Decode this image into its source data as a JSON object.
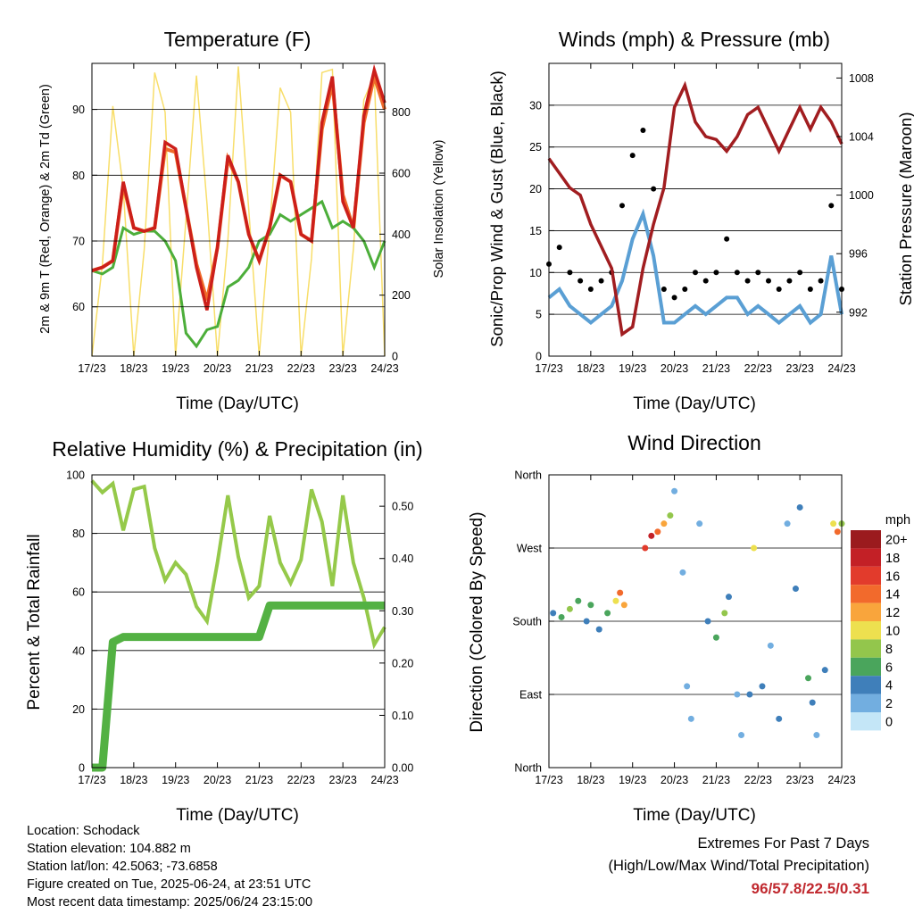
{
  "colors": {
    "temp_2m": "#cc1f1a",
    "temp_9m": "#f06a2a",
    "dewpoint": "#4cae3a",
    "solar": "#f8de6a",
    "wind": "#5a9fd4",
    "gust": "#000000",
    "pressure": "#a11d20",
    "rh": "#95c94a",
    "precip": "#53b143",
    "extremes": "#c0282e"
  },
  "time_ticks": [
    "17/23",
    "18/23",
    "19/23",
    "20/23",
    "21/23",
    "22/23",
    "23/23",
    "24/23"
  ],
  "panels": {
    "temperature": {
      "title": "Temperature (F)",
      "ylabel_left": "2m & 9m T (Red, Orange) & 2m Td (Green)",
      "ylabel_right": "Solar Insolation (Yellow)",
      "xlabel": "Time (Day/UTC)",
      "left_ticks": [
        "60",
        "70",
        "80",
        "90"
      ],
      "right_ticks": [
        "0",
        "200",
        "400",
        "600",
        "800"
      ]
    },
    "winds": {
      "title": "Winds (mph) & Pressure (mb)",
      "ylabel_left": "Sonic/Prop Wind & Gust (Blue, Black)",
      "ylabel_right": "Station Pressure (Maroon)",
      "xlabel": "Time (Day/UTC)",
      "left_ticks": [
        "0",
        "5",
        "10",
        "15",
        "20",
        "25",
        "30"
      ],
      "right_ticks": [
        "992",
        "996",
        "1000",
        "1004",
        "1008"
      ]
    },
    "humidity": {
      "title": "Relative Humidity (%) & Precipitation (in)",
      "ylabel_left": "Percent & Total Rainfall",
      "xlabel": "Time (Day/UTC)",
      "left_ticks": [
        "0",
        "20",
        "40",
        "60",
        "80",
        "100"
      ],
      "right_ticks": [
        "0.00",
        "0.10",
        "0.20",
        "0.30",
        "0.40",
        "0.50"
      ]
    },
    "direction": {
      "title": "Wind Direction",
      "ylabel_left": "Direction (Colored By Speed)",
      "xlabel": "Time (Day/UTC)",
      "left_ticks": [
        "North",
        "East",
        "South",
        "West",
        "North"
      ],
      "legend_title": "mph",
      "legend_labels": [
        "20+",
        "18",
        "16",
        "14",
        "12",
        "10",
        "8",
        "6",
        "4",
        "2",
        "0"
      ],
      "legend_colors": [
        "#9b1b1e",
        "#c32026",
        "#e23b2c",
        "#f26a2c",
        "#f9a53c",
        "#ede04f",
        "#93c64c",
        "#4aa55c",
        "#3f7fba",
        "#72aee0",
        "#c4e6f7"
      ]
    }
  },
  "station": {
    "location": "Location: Schodack",
    "elevation": "Station elevation: 104.882 m",
    "latlon": "Station lat/lon: 42.5063; -73.6858",
    "created": "Figure created on Tue, 2025-06-24, at 23:51 UTC",
    "recent": "Most recent data timestamp: 2025/06/24 23:15:00"
  },
  "extremes": {
    "line1": "Extremes For Past 7 Days",
    "line2": "(High/Low/Max Wind/Total Precipitation)",
    "values": "96/57.8/22.5/0.31"
  },
  "chart_data": [
    {
      "type": "line",
      "title": "Temperature (F)",
      "xlabel": "Time (Day/UTC)",
      "ylabel": "2m & 9m T (Red, Orange) & 2m Td (Green)",
      "y2label": "Solar Insolation (Yellow)",
      "x": [
        0,
        0.25,
        0.5,
        0.75,
        1.0,
        1.25,
        1.5,
        1.75,
        2.0,
        2.25,
        2.5,
        2.75,
        3.0,
        3.25,
        3.5,
        3.75,
        4.0,
        4.25,
        4.5,
        4.75,
        5.0,
        5.25,
        5.5,
        5.75,
        6.0,
        6.25,
        6.5,
        6.75,
        7.0
      ],
      "ylim": [
        52.5,
        97
      ],
      "y2lim": [
        0,
        960
      ],
      "series": [
        {
          "name": "2m T",
          "axis": "left",
          "values": [
            65.5,
            66,
            67,
            79,
            72,
            71.5,
            72,
            85,
            84,
            75,
            66,
            59.5,
            69,
            83,
            79,
            71,
            67,
            72,
            80,
            79,
            71,
            70,
            88,
            95,
            76,
            72,
            89,
            96,
            91
          ]
        },
        {
          "name": "9m T",
          "axis": "left",
          "values": [
            65.5,
            66,
            67,
            78.5,
            72,
            71.5,
            72,
            84,
            83.5,
            75,
            66.5,
            61,
            69,
            82.5,
            79,
            71,
            67,
            72,
            80,
            79,
            71,
            70,
            87,
            94,
            77,
            72,
            88,
            95,
            90
          ]
        },
        {
          "name": "2m Td",
          "axis": "left",
          "values": [
            65.5,
            65,
            66,
            72,
            71,
            71.5,
            71.5,
            70,
            67,
            56,
            54,
            56.5,
            57,
            63,
            64,
            66,
            70,
            71,
            74,
            73,
            74,
            75,
            76,
            72,
            73,
            72,
            70,
            66,
            70
          ]
        },
        {
          "name": "Solar Insolation",
          "axis": "right",
          "values": [
            0,
            300,
            820,
            550,
            0,
            350,
            930,
            800,
            0,
            450,
            920,
            500,
            0,
            380,
            950,
            480,
            0,
            420,
            880,
            800,
            0,
            320,
            930,
            940,
            0,
            350,
            840,
            920,
            0
          ]
        }
      ]
    },
    {
      "type": "line",
      "title": "Winds (mph) & Pressure (mb)",
      "xlabel": "Time (Day/UTC)",
      "ylabel": "Sonic/Prop Wind & Gust (Blue, Black)",
      "y2label": "Station Pressure (Maroon)",
      "x": [
        0,
        0.25,
        0.5,
        0.75,
        1.0,
        1.25,
        1.5,
        1.75,
        2.0,
        2.25,
        2.5,
        2.75,
        3.0,
        3.25,
        3.5,
        3.75,
        4.0,
        4.25,
        4.5,
        4.75,
        5.0,
        5.25,
        5.5,
        5.75,
        6.0,
        6.25,
        6.5,
        6.75,
        7.0
      ],
      "ylim": [
        0,
        35
      ],
      "y2lim": [
        989,
        1009
      ],
      "series": [
        {
          "name": "Wind",
          "axis": "left",
          "values": [
            7,
            8,
            6,
            5,
            4,
            5,
            6,
            9,
            14,
            17,
            12,
            4,
            4,
            5,
            6,
            5,
            6,
            7,
            7,
            5,
            6,
            5,
            4,
            5,
            6,
            4,
            5,
            12,
            5
          ]
        },
        {
          "name": "Gust",
          "axis": "left",
          "values": [
            11,
            13,
            10,
            9,
            8,
            9,
            10,
            18,
            24,
            27,
            20,
            8,
            7,
            8,
            10,
            9,
            10,
            14,
            10,
            9,
            10,
            9,
            8,
            9,
            10,
            8,
            9,
            18,
            8
          ]
        },
        {
          "name": "Station Pressure",
          "axis": "right",
          "values": [
            1002.5,
            1001.5,
            1000.5,
            1000,
            998,
            996.5,
            995,
            990.5,
            991,
            995,
            998,
            1000.5,
            1006,
            1007.5,
            1005,
            1004,
            1003.8,
            1003,
            1004,
            1005.5,
            1006,
            1004.5,
            1003,
            1004.5,
            1006,
            1004.5,
            1006,
            1005,
            1003.5
          ]
        }
      ]
    },
    {
      "type": "line",
      "title": "Relative Humidity (%) & Precipitation (in)",
      "xlabel": "Time (Day/UTC)",
      "ylabel": "Percent & Total Rainfall",
      "x": [
        0,
        0.25,
        0.5,
        0.75,
        1.0,
        1.25,
        1.5,
        1.75,
        2.0,
        2.25,
        2.5,
        2.75,
        3.0,
        3.25,
        3.5,
        3.75,
        4.0,
        4.25,
        4.5,
        4.75,
        5.0,
        5.25,
        5.5,
        5.75,
        6.0,
        6.25,
        6.5,
        6.75,
        7.0
      ],
      "ylim": [
        0,
        100
      ],
      "y2lim": [
        0,
        0.56
      ],
      "series": [
        {
          "name": "Relative Humidity",
          "axis": "left",
          "values": [
            98,
            94,
            97,
            81,
            95,
            96,
            75,
            64,
            70,
            66,
            55,
            50,
            70,
            93,
            72,
            58,
            62,
            86,
            70,
            63,
            71,
            95,
            84,
            62,
            93,
            70,
            58,
            42,
            48
          ]
        },
        {
          "name": "Total Precipitation",
          "axis": "right",
          "values": [
            0,
            0,
            0.24,
            0.25,
            0.25,
            0.25,
            0.25,
            0.25,
            0.25,
            0.25,
            0.25,
            0.25,
            0.25,
            0.25,
            0.25,
            0.25,
            0.25,
            0.31,
            0.31,
            0.31,
            0.31,
            0.31,
            0.31,
            0.31,
            0.31,
            0.31,
            0.31,
            0.31,
            0.31
          ]
        }
      ]
    },
    {
      "type": "scatter",
      "title": "Wind Direction",
      "xlabel": "Time (Day/UTC)",
      "ylabel": "Direction (Colored By Speed)",
      "ylim": [
        0,
        360
      ],
      "y_ticks": [
        "North",
        "East",
        "South",
        "West",
        "North"
      ],
      "points": [
        {
          "x": 0.1,
          "dir": 190,
          "speed": 4
        },
        {
          "x": 0.3,
          "dir": 185,
          "speed": 6
        },
        {
          "x": 0.5,
          "dir": 195,
          "speed": 8
        },
        {
          "x": 0.7,
          "dir": 205,
          "speed": 6
        },
        {
          "x": 0.9,
          "dir": 180,
          "speed": 4
        },
        {
          "x": 1.0,
          "dir": 200,
          "speed": 6
        },
        {
          "x": 1.2,
          "dir": 170,
          "speed": 4
        },
        {
          "x": 1.4,
          "dir": 190,
          "speed": 6
        },
        {
          "x": 1.6,
          "dir": 205,
          "speed": 10
        },
        {
          "x": 1.7,
          "dir": 215,
          "speed": 14
        },
        {
          "x": 1.8,
          "dir": 200,
          "speed": 12
        },
        {
          "x": 2.3,
          "dir": 270,
          "speed": 16
        },
        {
          "x": 2.45,
          "dir": 285,
          "speed": 18
        },
        {
          "x": 2.6,
          "dir": 290,
          "speed": 14
        },
        {
          "x": 2.75,
          "dir": 300,
          "speed": 12
        },
        {
          "x": 2.9,
          "dir": 310,
          "speed": 8
        },
        {
          "x": 3.0,
          "dir": 340,
          "speed": 2
        },
        {
          "x": 3.2,
          "dir": 240,
          "speed": 2
        },
        {
          "x": 3.3,
          "dir": 100,
          "speed": 2
        },
        {
          "x": 3.4,
          "dir": 60,
          "speed": 2
        },
        {
          "x": 3.6,
          "dir": 300,
          "speed": 2
        },
        {
          "x": 3.8,
          "dir": 180,
          "speed": 4
        },
        {
          "x": 4.0,
          "dir": 160,
          "speed": 6
        },
        {
          "x": 4.2,
          "dir": 190,
          "speed": 8
        },
        {
          "x": 4.3,
          "dir": 210,
          "speed": 4
        },
        {
          "x": 4.5,
          "dir": 90,
          "speed": 2
        },
        {
          "x": 4.6,
          "dir": 40,
          "speed": 2
        },
        {
          "x": 4.8,
          "dir": 90,
          "speed": 4
        },
        {
          "x": 4.9,
          "dir": 270,
          "speed": 10
        },
        {
          "x": 5.1,
          "dir": 100,
          "speed": 4
        },
        {
          "x": 5.3,
          "dir": 150,
          "speed": 2
        },
        {
          "x": 5.5,
          "dir": 60,
          "speed": 4
        },
        {
          "x": 5.7,
          "dir": 300,
          "speed": 2
        },
        {
          "x": 5.9,
          "dir": 220,
          "speed": 4
        },
        {
          "x": 6.0,
          "dir": 320,
          "speed": 4
        },
        {
          "x": 6.2,
          "dir": 110,
          "speed": 6
        },
        {
          "x": 6.3,
          "dir": 80,
          "speed": 4
        },
        {
          "x": 6.4,
          "dir": 40,
          "speed": 2
        },
        {
          "x": 6.6,
          "dir": 120,
          "speed": 4
        },
        {
          "x": 6.8,
          "dir": 300,
          "speed": 10
        },
        {
          "x": 6.9,
          "dir": 290,
          "speed": 14
        },
        {
          "x": 7.0,
          "dir": 300,
          "speed": 8
        }
      ]
    }
  ]
}
